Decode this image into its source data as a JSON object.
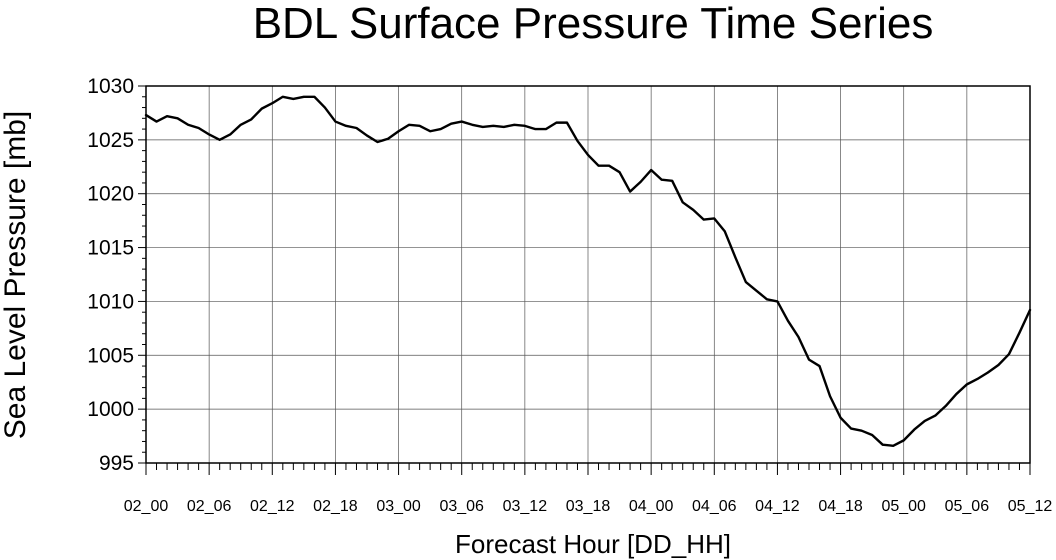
{
  "chart_data": {
    "type": "line",
    "title": "BDL Surface Pressure Time Series",
    "xlabel": "Forecast Hour [DD_HH]",
    "ylabel": "Sea Level Pressure [mb]",
    "x_tick_labels": [
      "02_00",
      "02_06",
      "02_12",
      "02_18",
      "03_00",
      "03_06",
      "03_12",
      "03_18",
      "04_00",
      "04_06",
      "04_12",
      "04_18",
      "05_00",
      "05_06",
      "05_12"
    ],
    "y_ticks": [
      995,
      1000,
      1005,
      1010,
      1015,
      1020,
      1025,
      1030
    ],
    "ylim": [
      995,
      1030
    ],
    "x_hours_range": [
      0,
      84
    ],
    "x_step_hours": 1,
    "grid": true,
    "line_color": "#000000",
    "series": [
      {
        "values": [
          1027.3,
          1026.7,
          1027.2,
          1027.0,
          1026.4,
          1026.1,
          1025.5,
          1025.0,
          1025.5,
          1026.4,
          1026.9,
          1027.9,
          1028.4,
          1029.0,
          1028.8,
          1029.0,
          1029.0,
          1028.0,
          1026.7,
          1026.3,
          1026.1,
          1025.4,
          1024.8,
          1025.1,
          1025.8,
          1026.4,
          1026.3,
          1025.8,
          1026.0,
          1026.5,
          1026.7,
          1026.4,
          1026.2,
          1026.3,
          1026.2,
          1026.4,
          1026.3,
          1026.0,
          1026.0,
          1026.6,
          1026.6,
          1024.9,
          1023.6,
          1022.6,
          1022.6,
          1022.0,
          1020.2,
          1021.1,
          1022.2,
          1021.3,
          1021.2,
          1019.2,
          1018.5,
          1017.6,
          1017.7,
          1016.5,
          1014.1,
          1011.8,
          1011.0,
          1010.2,
          1010.0,
          1008.2,
          1006.7,
          1004.6,
          1004.0,
          1001.2,
          999.2,
          998.2,
          998.0,
          997.6,
          996.7,
          996.6,
          997.1,
          998.1,
          998.9,
          999.4,
          1000.3,
          1001.4,
          1002.3,
          1002.8,
          1003.4,
          1004.1,
          1005.1,
          1007.1,
          1009.2
        ]
      }
    ]
  }
}
